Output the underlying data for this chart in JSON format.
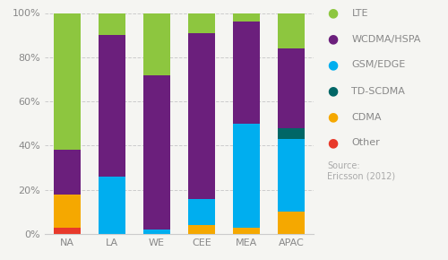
{
  "categories": [
    "NA",
    "LA",
    "WE",
    "CEE",
    "MEA",
    "APAC"
  ],
  "series": {
    "Other": [
      3,
      0,
      0,
      0,
      0,
      0
    ],
    "CDMA": [
      15,
      0,
      0,
      4,
      3,
      10
    ],
    "GSM/EDGE": [
      0,
      26,
      2,
      12,
      47,
      33
    ],
    "TD-SCDMA": [
      0,
      0,
      0,
      0,
      0,
      5
    ],
    "WCDMA/HSPA": [
      20,
      64,
      70,
      75,
      46,
      36
    ],
    "LTE": [
      62,
      10,
      28,
      9,
      4,
      16
    ]
  },
  "colors": {
    "Other": "#e8392a",
    "CDMA": "#f5a800",
    "GSM/EDGE": "#00aeef",
    "TD-SCDMA": "#006666",
    "WCDMA/HSPA": "#6b1f7c",
    "LTE": "#8dc63f"
  },
  "order": [
    "Other",
    "CDMA",
    "GSM/EDGE",
    "TD-SCDMA",
    "WCDMA/HSPA",
    "LTE"
  ],
  "legend_order": [
    "LTE",
    "WCDMA/HSPA",
    "GSM/EDGE",
    "TD-SCDMA",
    "CDMA",
    "Other"
  ],
  "ylim": [
    0,
    100
  ],
  "yticks": [
    0,
    20,
    40,
    60,
    80,
    100
  ],
  "yticklabels": [
    "0%",
    "20%",
    "40%",
    "60%",
    "80%",
    "100%"
  ],
  "source_text": "Source:\nEricsson (2012)",
  "bar_width": 0.6,
  "background_color": "#f5f5f2",
  "grid_color": "#cccccc",
  "legend_fontsize": 8,
  "tick_fontsize": 8,
  "source_fontsize": 7
}
